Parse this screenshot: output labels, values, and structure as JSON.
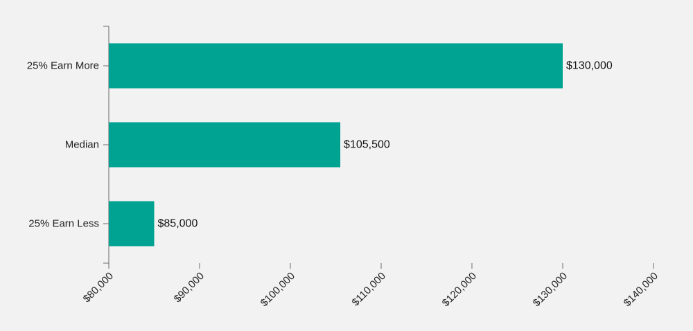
{
  "chart_data": {
    "type": "bar",
    "orientation": "horizontal",
    "categories": [
      "25% Earn More",
      "Median",
      "25% Earn Less"
    ],
    "values": [
      130000,
      105500,
      85000
    ],
    "value_labels": [
      "$130,000",
      "$105,500",
      "$85,000"
    ],
    "xlim": [
      80000,
      140000
    ],
    "x_ticks": [
      80000,
      90000,
      100000,
      110000,
      120000,
      130000,
      140000
    ],
    "x_tick_labels": [
      "$80,000",
      "$90,000",
      "$100,000",
      "$110,000",
      "$120,000",
      "$130,000",
      "$140,000"
    ],
    "bar_color": "#00a392",
    "background_color": "#f2f2f2",
    "grid": false,
    "title": "",
    "xlabel": "",
    "ylabel": ""
  }
}
